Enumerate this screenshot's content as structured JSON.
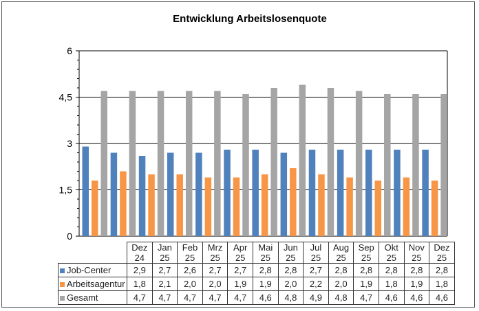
{
  "chart_data": {
    "type": "bar",
    "title": "Entwicklung  Arbeitslosenquote",
    "categories": [
      [
        "Dez",
        "24"
      ],
      [
        "Jan",
        "25"
      ],
      [
        "Feb",
        "25"
      ],
      [
        "Mrz",
        "25"
      ],
      [
        "Apr",
        "25"
      ],
      [
        "Mai",
        "25"
      ],
      [
        "Jun",
        "25"
      ],
      [
        "Jul",
        "25"
      ],
      [
        "Aug",
        "25"
      ],
      [
        "Sep",
        "25"
      ],
      [
        "Okt",
        "25"
      ],
      [
        "Nov",
        "25"
      ],
      [
        "Dez",
        "25"
      ]
    ],
    "series": [
      {
        "name": "Job-Center",
        "color": "#4f81bd",
        "values": [
          2.9,
          2.7,
          2.6,
          2.7,
          2.7,
          2.8,
          2.8,
          2.7,
          2.8,
          2.8,
          2.8,
          2.8,
          2.8
        ],
        "labels": [
          "2,9",
          "2,7",
          "2,6",
          "2,7",
          "2,7",
          "2,8",
          "2,8",
          "2,7",
          "2,8",
          "2,8",
          "2,8",
          "2,8",
          "2,8"
        ]
      },
      {
        "name": "Arbeitsagentur",
        "color": "#f79646",
        "values": [
          1.8,
          2.1,
          2.0,
          2.0,
          1.9,
          1.9,
          2.0,
          2.2,
          2.0,
          1.9,
          1.8,
          1.9,
          1.8
        ],
        "labels": [
          "1,8",
          "2,1",
          "2,0",
          "2,0",
          "1,9",
          "1,9",
          "2,0",
          "2,2",
          "2,0",
          "1,9",
          "1,8",
          "1,9",
          "1,8"
        ]
      },
      {
        "name": "Gesamt",
        "color": "#a5a5a5",
        "values": [
          4.7,
          4.7,
          4.7,
          4.7,
          4.7,
          4.6,
          4.8,
          4.9,
          4.8,
          4.7,
          4.6,
          4.6,
          4.6
        ],
        "labels": [
          "4,7",
          "4,7",
          "4,7",
          "4,7",
          "4,7",
          "4,6",
          "4,8",
          "4,9",
          "4,8",
          "4,7",
          "4,6",
          "4,6",
          "4,6"
        ]
      }
    ],
    "ylim": [
      0,
      6
    ],
    "yticks": [
      0,
      1.5,
      3,
      4.5,
      6
    ],
    "ytick_labels": [
      "0",
      "1,5",
      "3",
      "4,5",
      "6"
    ],
    "grid": true,
    "legend": "data-table"
  }
}
